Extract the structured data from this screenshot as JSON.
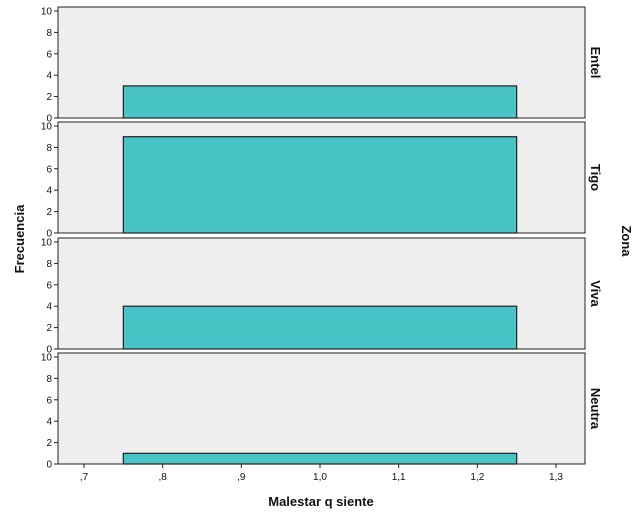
{
  "chart_data": {
    "type": "bar",
    "subtype": "histogram-panels",
    "xlabel": "Malestar q siente",
    "ylabel": "Frecuencia",
    "facet_label": "Zona",
    "xlim": [
      0.7,
      1.3
    ],
    "x_ticks": [
      0.7,
      0.8,
      0.9,
      1.0,
      1.1,
      1.2,
      1.3
    ],
    "x_tick_labels": [
      ",7",
      ",8",
      ",9",
      "1,0",
      "1,1",
      "1,2",
      "1,3"
    ],
    "ylim": [
      0,
      10
    ],
    "y_ticks": [
      0,
      2,
      4,
      6,
      8,
      10
    ],
    "y_tick_labels": [
      "0",
      "2",
      "4",
      "6",
      "8",
      "10"
    ],
    "bar_bin": [
      0.75,
      1.25
    ],
    "bar_color": "#48c3c6",
    "panel_bg": "#efefef",
    "panels": [
      {
        "name": "Entel",
        "value": 3
      },
      {
        "name": "Tigo",
        "value": 9
      },
      {
        "name": "Viva",
        "value": 4
      },
      {
        "name": "Neutra",
        "value": 1
      }
    ]
  }
}
